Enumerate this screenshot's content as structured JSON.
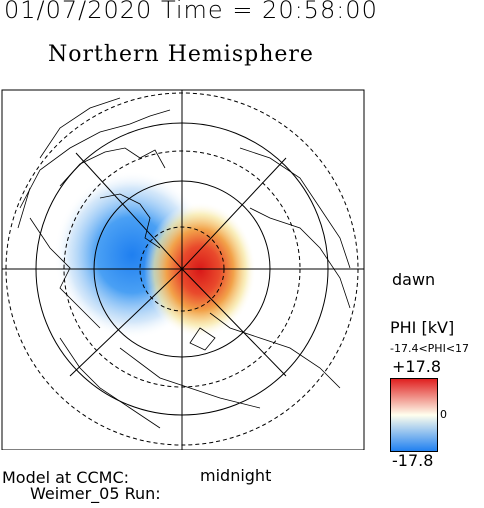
{
  "header": {
    "date_time": "01/07/2020 Time = 20:58:00",
    "hemisphere": "Northern Hemisphere"
  },
  "map": {
    "dawn_label": "dawn",
    "midnight_label": "midnight"
  },
  "colorbar": {
    "title": "PHI [kV]",
    "range_text": "-17.4<PHI<17",
    "max_label": "+17.8",
    "zero_label": "0",
    "min_label": "-17.8",
    "colors": {
      "max": "#e02020",
      "mid": "#ffffee",
      "min": "#2080f0"
    }
  },
  "footer": {
    "model_line": "Model at CCMC:",
    "run_line": "Weimer_05 Run:"
  }
}
